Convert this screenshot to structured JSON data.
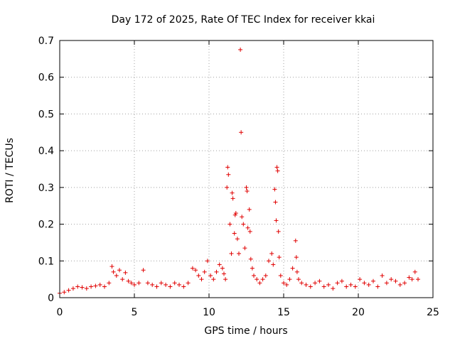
{
  "chart_data": {
    "type": "scatter",
    "title": "Day 172 of 2025, Rate Of TEC Index for receiver kkai",
    "xlabel": "GPS time / hours",
    "ylabel": "ROTI / TECUs",
    "xlim": [
      0,
      25
    ],
    "ylim": [
      0,
      0.7
    ],
    "xticks": [
      0,
      5,
      10,
      15,
      20,
      25
    ],
    "xtick_labels": [
      "0",
      "5",
      "10",
      "15",
      "20",
      "25"
    ],
    "yticks": [
      0,
      0.1,
      0.2,
      0.3,
      0.4,
      0.5,
      0.6,
      0.7
    ],
    "ytick_labels": [
      "0",
      "0.1",
      "0.2",
      "0.3",
      "0.4",
      "0.5",
      "0.6",
      "0.7"
    ],
    "grid": true,
    "marker": "+",
    "color": "#e00000",
    "series": [
      {
        "name": "ROTI",
        "x": [
          0.0,
          0.3,
          0.6,
          0.9,
          1.2,
          1.5,
          1.8,
          2.1,
          2.4,
          2.7,
          3.0,
          3.3,
          3.5,
          3.6,
          3.8,
          4.0,
          4.2,
          4.4,
          4.6,
          4.8,
          5.0,
          5.3,
          5.6,
          5.9,
          6.2,
          6.5,
          6.8,
          7.1,
          7.4,
          7.7,
          8.0,
          8.3,
          8.6,
          8.9,
          9.1,
          9.3,
          9.5,
          9.7,
          9.9,
          10.1,
          10.3,
          10.5,
          10.7,
          10.9,
          11.0,
          11.1,
          11.2,
          11.25,
          11.3,
          11.4,
          11.5,
          11.55,
          11.6,
          11.7,
          11.75,
          11.8,
          11.9,
          12.0,
          12.1,
          12.15,
          12.2,
          12.3,
          12.4,
          12.5,
          12.55,
          12.6,
          12.7,
          12.75,
          12.8,
          12.9,
          13.0,
          13.2,
          13.4,
          13.6,
          13.8,
          14.0,
          14.2,
          14.3,
          14.4,
          14.45,
          14.5,
          14.55,
          14.6,
          14.65,
          14.7,
          14.8,
          15.0,
          15.2,
          15.4,
          15.6,
          15.8,
          15.85,
          15.9,
          16.0,
          16.2,
          16.5,
          16.8,
          17.1,
          17.4,
          17.7,
          18.0,
          18.3,
          18.6,
          18.9,
          19.2,
          19.5,
          19.8,
          20.1,
          20.4,
          20.7,
          21.0,
          21.3,
          21.6,
          21.9,
          22.2,
          22.5,
          22.8,
          23.1,
          23.4,
          23.6,
          23.8,
          24.0
        ],
        "y": [
          0.012,
          0.015,
          0.02,
          0.025,
          0.03,
          0.028,
          0.025,
          0.03,
          0.032,
          0.035,
          0.03,
          0.04,
          0.085,
          0.07,
          0.06,
          0.075,
          0.05,
          0.068,
          0.045,
          0.04,
          0.035,
          0.04,
          0.075,
          0.04,
          0.035,
          0.03,
          0.04,
          0.035,
          0.03,
          0.04,
          0.035,
          0.03,
          0.04,
          0.08,
          0.075,
          0.06,
          0.05,
          0.07,
          0.1,
          0.06,
          0.05,
          0.07,
          0.09,
          0.08,
          0.065,
          0.05,
          0.3,
          0.355,
          0.335,
          0.2,
          0.12,
          0.285,
          0.27,
          0.175,
          0.225,
          0.23,
          0.16,
          0.12,
          0.675,
          0.45,
          0.22,
          0.2,
          0.135,
          0.3,
          0.29,
          0.19,
          0.24,
          0.18,
          0.105,
          0.08,
          0.06,
          0.05,
          0.04,
          0.05,
          0.06,
          0.1,
          0.12,
          0.09,
          0.295,
          0.26,
          0.21,
          0.355,
          0.345,
          0.18,
          0.11,
          0.06,
          0.04,
          0.035,
          0.05,
          0.08,
          0.155,
          0.11,
          0.07,
          0.05,
          0.04,
          0.035,
          0.03,
          0.04,
          0.045,
          0.03,
          0.035,
          0.025,
          0.04,
          0.045,
          0.03,
          0.035,
          0.03,
          0.05,
          0.04,
          0.035,
          0.045,
          0.03,
          0.06,
          0.04,
          0.05,
          0.045,
          0.035,
          0.04,
          0.055,
          0.05,
          0.07,
          0.05
        ]
      }
    ]
  }
}
